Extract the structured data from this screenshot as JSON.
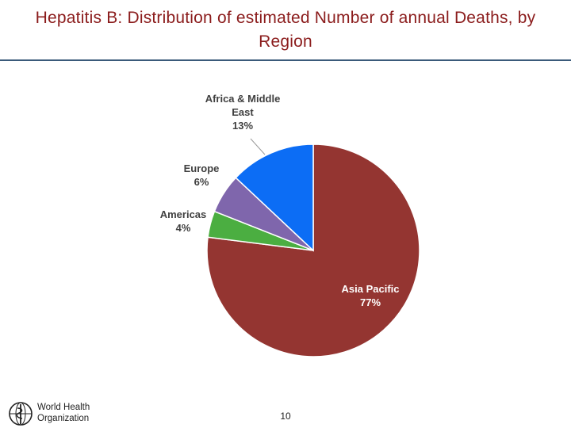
{
  "slide": {
    "title": "Hepatitis B: Distribution of estimated Number of annual Deaths, by Region",
    "page_number": "10"
  },
  "logo": {
    "name": "World Health Organization",
    "line1": "World Health",
    "line2": "Organization"
  },
  "colors": {
    "title": "#8b1c1c",
    "rule": "#3a5a7a"
  },
  "chart_data": {
    "type": "pie",
    "title": "",
    "start": "top, clockwise",
    "slices": [
      {
        "label": "Asia Pacific",
        "value": 77,
        "value_label": "77%",
        "color": "#943531",
        "label_position": "inside"
      },
      {
        "label": "Americas",
        "value": 4,
        "value_label": "4%",
        "color": "#4bae41",
        "label_position": "outside"
      },
      {
        "label": "Europe",
        "value": 6,
        "value_label": "6%",
        "color": "#7f66ac",
        "label_position": "outside"
      },
      {
        "label": "Africa & Middle East",
        "value": 13,
        "value_label": "13%",
        "color": "#0c6df5",
        "label_position": "outside"
      }
    ]
  }
}
